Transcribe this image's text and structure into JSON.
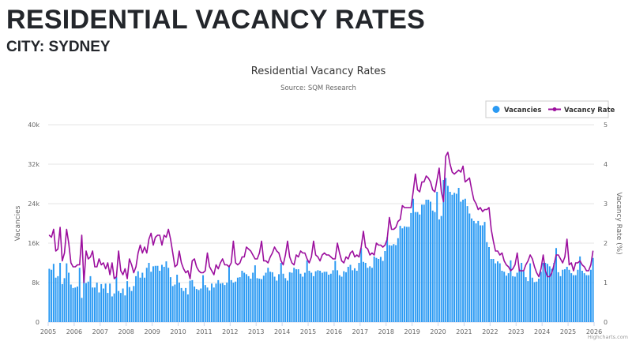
{
  "header": {
    "title": "RESIDENTIAL VACANCY RATES",
    "subtitle": "CITY: SYDNEY"
  },
  "chart_data": {
    "type": "bar+line",
    "title": "Residential Vacancy Rates",
    "subtitle": "Source: SQM Research",
    "credit": "Highcharts.com",
    "x_start": "2005-01",
    "x_frequency": "monthly",
    "x_tick_labels": [
      "2005",
      "2006",
      "2007",
      "2008",
      "2009",
      "2010",
      "2011",
      "2012",
      "2013",
      "2014",
      "2015",
      "2016",
      "2017",
      "2018",
      "2019",
      "2020",
      "2021",
      "2022",
      "2023",
      "2024",
      "2025",
      "2026"
    ],
    "y_left": {
      "label": "Vacancies",
      "range": [
        0,
        40000
      ],
      "tick_labels": [
        "0",
        "8k",
        "16k",
        "24k",
        "32k",
        "40k"
      ]
    },
    "y_right": {
      "label": "Vacancy Rate (%)",
      "range": [
        0,
        5
      ],
      "tick_labels": [
        "0",
        "1",
        "2",
        "3",
        "4",
        "5"
      ]
    },
    "grid": true,
    "legend": {
      "placement": "top-right",
      "items": [
        "Vacancies",
        "Vacancy Rate"
      ]
    },
    "colors": {
      "vacancies": "#2b9af3",
      "vacancy_rate": "#9c0f9e"
    },
    "series": [
      {
        "name": "Vacancies",
        "type": "bar",
        "axis": "left",
        "unit": "thousands",
        "values": [
          10.8,
          10.6,
          11.8,
          9.0,
          9.3,
          12.0,
          7.7,
          8.9,
          11.9,
          10.0,
          7.6,
          6.9,
          7.0,
          7.2,
          11.0,
          4.9,
          9.2,
          7.9,
          8.2,
          9.3,
          7.0,
          7.0,
          8.0,
          6.0,
          7.7,
          6.8,
          7.8,
          5.9,
          7.8,
          5.2,
          5.8,
          9.1,
          6.3,
          5.9,
          6.8,
          5.4,
          8.3,
          7.1,
          6.3,
          7.3,
          9.3,
          10.3,
          9.0,
          10.0,
          9.0,
          11.0,
          12.0,
          10.2,
          11.3,
          11.4,
          11.4,
          10.4,
          11.6,
          11.2,
          12.3,
          11.0,
          9.1,
          7.3,
          7.6,
          9.6,
          8.0,
          6.9,
          6.3,
          6.9,
          5.6,
          8.4,
          8.5,
          7.2,
          6.7,
          6.5,
          6.8,
          9.5,
          7.5,
          7.0,
          6.4,
          7.8,
          7.0,
          7.8,
          8.5,
          7.8,
          7.9,
          7.5,
          8.0,
          11.2,
          8.5,
          8.0,
          8.2,
          9.0,
          9.1,
          10.4,
          10.0,
          9.7,
          9.3,
          8.8,
          10.0,
          11.5,
          8.9,
          8.8,
          8.7,
          9.4,
          10.0,
          11.0,
          10.2,
          10.1,
          9.2,
          8.4,
          9.7,
          12.0,
          9.8,
          8.9,
          8.4,
          10.1,
          10.0,
          11.0,
          10.7,
          10.7,
          9.8,
          9.2,
          10.0,
          12.5,
          10.4,
          10.0,
          9.3,
          10.3,
          10.5,
          10.4,
          10.0,
          10.2,
          10.2,
          9.6,
          9.8,
          10.5,
          12.4,
          10.5,
          9.5,
          9.2,
          10.3,
          10.1,
          11.2,
          11.6,
          10.5,
          10.9,
          10.4,
          12.0,
          15.0,
          12.2,
          12.0,
          11.0,
          11.3,
          11.0,
          13.3,
          13.0,
          12.8,
          13.2,
          12.4,
          14.4,
          17.2,
          15.6,
          15.5,
          15.8,
          15.6,
          17.0,
          19.5,
          19.0,
          19.4,
          19.3,
          19.3,
          22.1,
          25.0,
          22.3,
          22.3,
          21.8,
          23.8,
          23.8,
          24.8,
          24.8,
          24.4,
          22.6,
          22.3,
          26.4,
          20.8,
          21.5,
          28.8,
          29.2,
          27.6,
          26.4,
          25.8,
          26.2,
          26.0,
          27.2,
          24.4,
          24.8,
          25.0,
          23.5,
          22.0,
          21.0,
          20.5,
          20.0,
          20.5,
          19.6,
          19.6,
          20.3,
          16.2,
          15.2,
          12.8,
          12.8,
          11.9,
          12.3,
          11.9,
          10.4,
          10.2,
          9.4,
          9.9,
          12.5,
          9.3,
          9.2,
          10.0,
          10.7,
          12.0,
          10.3,
          9.1,
          8.3,
          11.9,
          9.0,
          8.1,
          8.2,
          8.8,
          10.2,
          12.0,
          12.0,
          11.8,
          11.3,
          10.8,
          12.0,
          15.0,
          10.1,
          9.3,
          10.6,
          10.7,
          11.2,
          10.6,
          9.9,
          9.5,
          9.5,
          10.6,
          13.3,
          10.4,
          9.9,
          9.5,
          9.5,
          10.6,
          13.0
        ]
      },
      {
        "name": "Vacancy Rate",
        "type": "line",
        "axis": "right",
        "unit": "%",
        "values": [
          2.2,
          2.15,
          2.35,
          1.8,
          1.85,
          2.4,
          1.55,
          1.75,
          2.35,
          2.0,
          1.5,
          1.4,
          1.4,
          1.45,
          1.45,
          2.2,
          1.0,
          1.8,
          1.6,
          1.65,
          1.8,
          1.4,
          1.4,
          1.6,
          1.45,
          1.5,
          1.35,
          1.5,
          1.2,
          1.5,
          1.1,
          1.15,
          1.8,
          1.3,
          1.2,
          1.35,
          1.1,
          1.6,
          1.45,
          1.25,
          1.4,
          1.75,
          1.95,
          1.75,
          1.9,
          1.75,
          2.1,
          2.25,
          1.95,
          2.15,
          2.2,
          2.2,
          1.95,
          2.2,
          2.15,
          2.35,
          2.1,
          1.75,
          1.4,
          1.45,
          1.8,
          1.5,
          1.35,
          1.25,
          1.3,
          1.1,
          1.55,
          1.6,
          1.4,
          1.3,
          1.25,
          1.25,
          1.3,
          1.75,
          1.4,
          1.3,
          1.2,
          1.45,
          1.35,
          1.5,
          1.6,
          1.45,
          1.45,
          1.4,
          1.5,
          2.05,
          1.5,
          1.45,
          1.5,
          1.65,
          1.65,
          1.9,
          1.85,
          1.8,
          1.7,
          1.6,
          1.6,
          1.75,
          2.05,
          1.55,
          1.55,
          1.5,
          1.65,
          1.75,
          1.9,
          1.8,
          1.75,
          1.55,
          1.45,
          1.7,
          2.05,
          1.65,
          1.5,
          1.45,
          1.7,
          1.65,
          1.8,
          1.75,
          1.75,
          1.6,
          1.5,
          1.65,
          2.05,
          1.7,
          1.65,
          1.55,
          1.7,
          1.75,
          1.7,
          1.7,
          1.65,
          1.6,
          1.6,
          2.0,
          1.75,
          1.55,
          1.5,
          1.65,
          1.6,
          1.75,
          1.8,
          1.65,
          1.7,
          1.65,
          1.9,
          2.3,
          1.9,
          1.85,
          1.7,
          1.75,
          1.7,
          2.0,
          1.95,
          1.95,
          1.9,
          1.95,
          2.1,
          2.65,
          2.35,
          2.35,
          2.4,
          2.55,
          2.6,
          2.95,
          2.9,
          2.9,
          2.9,
          2.9,
          3.3,
          3.75,
          3.35,
          3.3,
          3.55,
          3.55,
          3.7,
          3.65,
          3.55,
          3.35,
          3.3,
          3.6,
          3.9,
          3.3,
          3.05,
          4.2,
          4.3,
          4.0,
          3.8,
          3.75,
          3.8,
          3.85,
          3.8,
          3.95,
          3.55,
          3.6,
          3.65,
          3.35,
          3.1,
          3.0,
          2.85,
          2.9,
          2.8,
          2.85,
          2.85,
          2.9,
          2.35,
          2.05,
          1.8,
          1.8,
          1.7,
          1.75,
          1.55,
          1.45,
          1.4,
          1.3,
          1.35,
          1.45,
          1.75,
          1.3,
          1.3,
          1.3,
          1.45,
          1.55,
          1.7,
          1.6,
          1.4,
          1.25,
          1.15,
          1.35,
          1.7,
          1.3,
          1.15,
          1.15,
          1.25,
          1.45,
          1.7,
          1.7,
          1.6,
          1.5,
          1.65,
          2.1,
          1.45,
          1.5,
          1.3,
          1.5,
          1.5,
          1.55,
          1.45,
          1.4,
          1.3,
          1.3,
          1.45,
          1.8
        ]
      }
    ]
  }
}
